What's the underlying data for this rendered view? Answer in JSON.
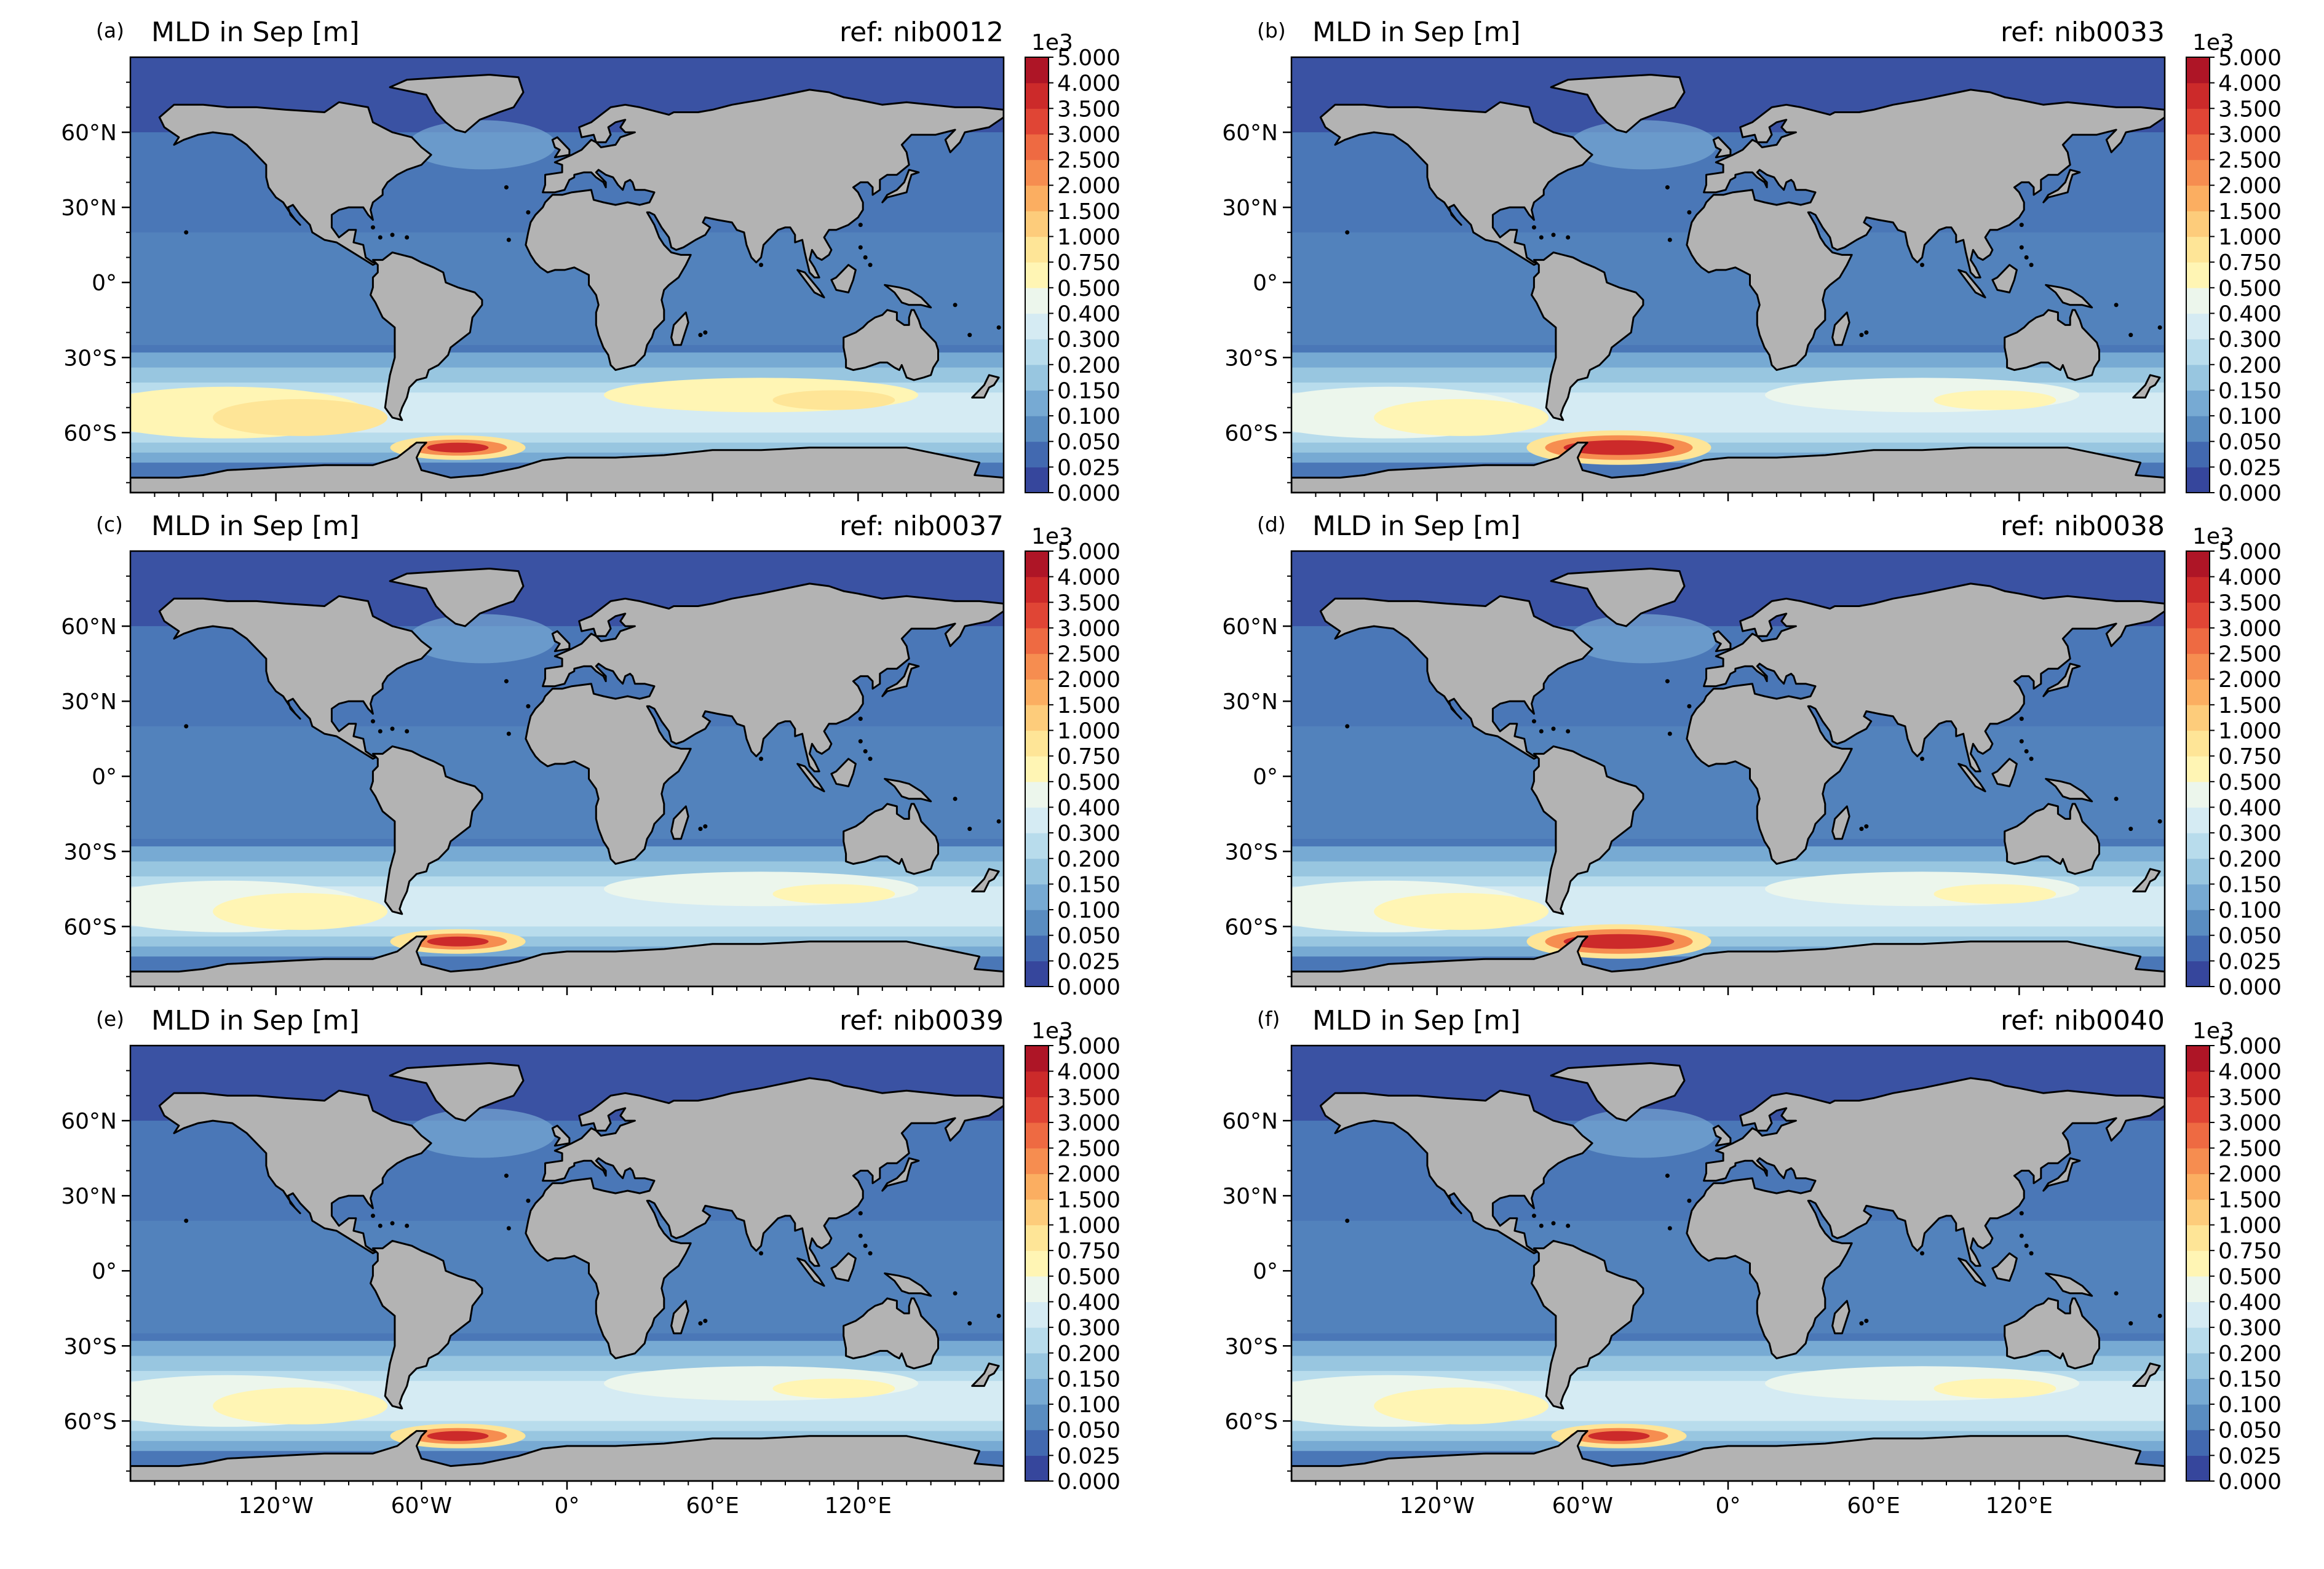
{
  "panels": [
    {
      "letter": "(a)",
      "title": "MLD in Sep [m]",
      "ref": "ref: nib0012"
    },
    {
      "letter": "(b)",
      "title": "MLD in Sep [m]",
      "ref": "ref: nib0033"
    },
    {
      "letter": "(c)",
      "title": "MLD in Sep [m]",
      "ref": "ref: nib0037"
    },
    {
      "letter": "(d)",
      "title": "MLD in Sep [m]",
      "ref": "ref: nib0038"
    },
    {
      "letter": "(e)",
      "title": "MLD in Sep [m]",
      "ref": "ref: nib0039"
    },
    {
      "letter": "(f)",
      "title": "MLD in Sep [m]",
      "ref": "ref: nib0040"
    }
  ],
  "lat_labels": [
    "60°N",
    "30°N",
    "0°",
    "30°S",
    "60°S"
  ],
  "lon_labels": [
    "120°W",
    "60°W",
    "0°",
    "60°E",
    "120°E"
  ],
  "colorbar": {
    "multiplier": "1e3",
    "ticks": [
      "0.000",
      "0.025",
      "0.050",
      "0.100",
      "0.150",
      "0.200",
      "0.300",
      "0.400",
      "0.500",
      "0.750",
      "1.000",
      "1.500",
      "2.000",
      "2.500",
      "3.000",
      "3.500",
      "4.000",
      "5.000"
    ],
    "colors": [
      "#36469c",
      "#4269b0",
      "#5a8dc1",
      "#77aad3",
      "#98c6e0",
      "#b8dcec",
      "#d5ebf3",
      "#ecf6ec",
      "#fff5b4",
      "#fee597",
      "#fdcc7b",
      "#fbae61",
      "#f68d50",
      "#ee6a42",
      "#e04535",
      "#cc2a2a",
      "#ae1526"
    ]
  },
  "colors": {
    "land": "#b3b3b3",
    "coast": "#000000",
    "deep_ocean": "#36469c",
    "ocean": "#4a77b7",
    "background": "#ffffff"
  }
}
